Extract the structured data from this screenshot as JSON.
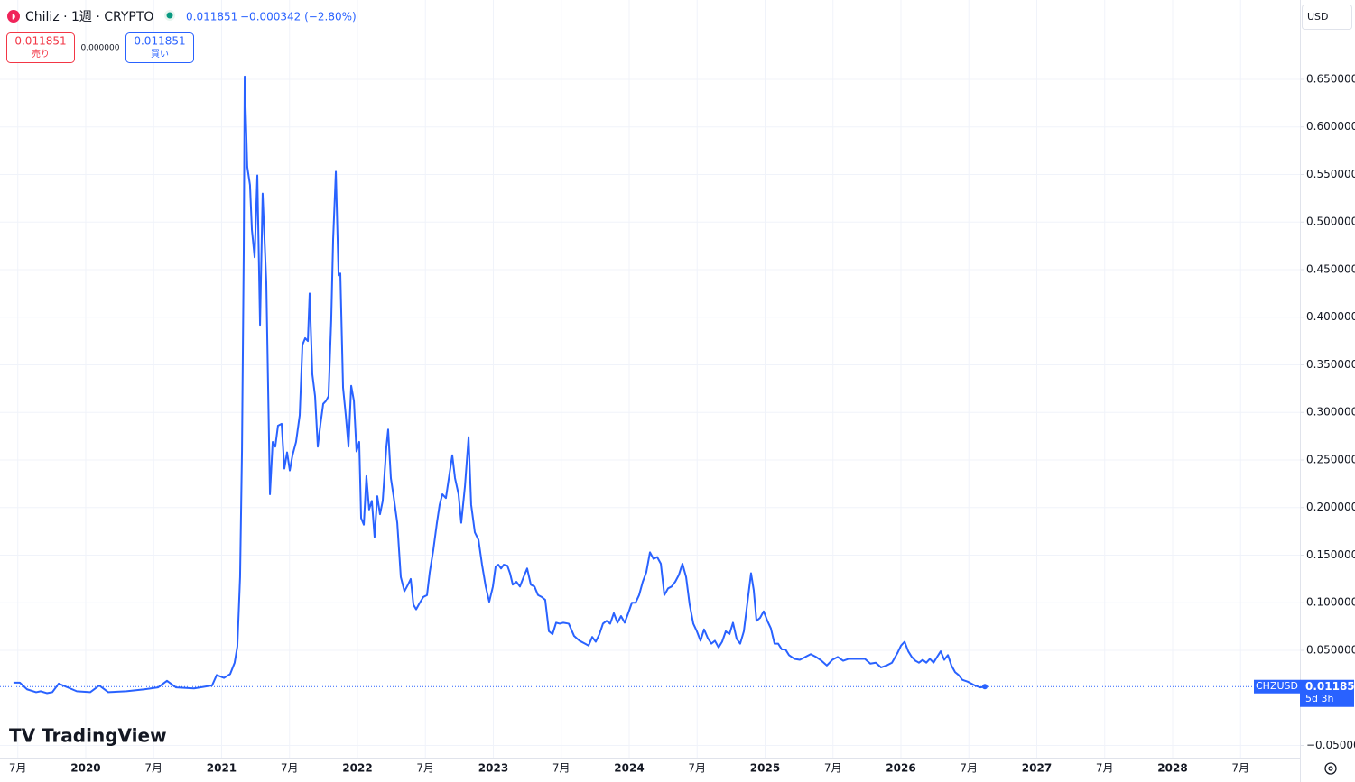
{
  "chart_data": {
    "type": "line",
    "symbol_title": "Chiliz · 1週 · CRYPTO",
    "last_price": 0.011851,
    "change": "−0.000342 (−2.80%)",
    "sell_label": "売り",
    "buy_label": "買い",
    "spread": "0.000000",
    "currency": "USD",
    "countdown": "5d 3h",
    "brand": "TradingView",
    "grid": true,
    "log_scale": false,
    "xlim": [
      2019.369,
      2028.937
    ],
    "ylim": [
      -0.0628,
      0.7334
    ],
    "xticks": [
      {
        "value": 2019.5,
        "label": "7月"
      },
      2020,
      {
        "value": 2020.5,
        "label": "7月"
      },
      2021,
      {
        "value": 2021.5,
        "label": "7月"
      },
      2022,
      {
        "value": 2022.5,
        "label": "7月"
      },
      2023,
      {
        "value": 2023.5,
        "label": "7月"
      },
      2024,
      {
        "value": 2024.5,
        "label": "7月"
      },
      2025,
      {
        "value": 2025.5,
        "label": "7月"
      },
      2026,
      {
        "value": 2026.5,
        "label": "7月"
      },
      2027,
      {
        "value": 2027.5,
        "label": "7月"
      },
      2028,
      {
        "value": 2028.5,
        "label": "7月"
      }
    ],
    "yticks": [
      {
        "value": -0.05,
        "label": "−0.050000"
      },
      {
        "value": 0.05,
        "label": "0.050000"
      },
      {
        "value": 0.1,
        "label": "0.100000"
      },
      {
        "value": 0.15,
        "label": "0.150000"
      },
      {
        "value": 0.2,
        "label": "0.200000"
      },
      {
        "value": 0.25,
        "label": "0.250000"
      },
      {
        "value": 0.3,
        "label": "0.300000"
      },
      {
        "value": 0.35,
        "label": "0.350000"
      },
      {
        "value": 0.4,
        "label": "0.400000"
      },
      {
        "value": 0.45,
        "label": "0.450000"
      },
      {
        "value": 0.5,
        "label": "0.500000"
      },
      {
        "value": 0.55,
        "label": "0.550000"
      },
      {
        "value": 0.6,
        "label": "0.600000"
      },
      {
        "value": 0.65,
        "label": "0.650000"
      }
    ],
    "series": [
      {
        "name": "CHZUSD",
        "color": "#2962ff",
        "x": [
          2019.468,
          2019.515,
          2019.568,
          2019.635,
          2019.668,
          2019.714,
          2019.754,
          2019.801,
          2019.867,
          2019.934,
          2020.033,
          2020.1,
          2020.166,
          2020.299,
          2020.432,
          2020.532,
          2020.598,
          2020.665,
          2020.797,
          2020.93,
          2020.964,
          2021.017,
          2021.063,
          2021.096,
          2021.116,
          2021.136,
          2021.15,
          2021.163,
          2021.17,
          2021.189,
          2021.209,
          2021.223,
          2021.243,
          2021.263,
          2021.283,
          2021.302,
          2021.329,
          2021.356,
          2021.376,
          2021.395,
          2021.415,
          2021.442,
          2021.462,
          2021.482,
          2021.502,
          2021.522,
          2021.548,
          2021.575,
          2021.595,
          2021.615,
          2021.635,
          2021.648,
          2021.668,
          2021.688,
          2021.708,
          2021.728,
          2021.748,
          2021.768,
          2021.787,
          2021.807,
          2021.821,
          2021.841,
          2021.861,
          2021.874,
          2021.894,
          2021.914,
          2021.934,
          2021.954,
          2021.974,
          2021.993,
          2022.013,
          2022.027,
          2022.047,
          2022.066,
          2022.086,
          2022.106,
          2022.126,
          2022.146,
          2022.166,
          2022.186,
          2022.213,
          2022.226,
          2022.246,
          2022.266,
          2022.293,
          2022.319,
          2022.346,
          2022.372,
          2022.392,
          2022.412,
          2022.432,
          2022.459,
          2022.485,
          2022.512,
          2022.532,
          2022.558,
          2022.585,
          2022.605,
          2022.625,
          2022.651,
          2022.678,
          2022.698,
          2022.718,
          2022.744,
          2022.764,
          2022.791,
          2022.818,
          2022.837,
          2022.864,
          2022.891,
          2022.917,
          2022.944,
          2022.97,
          2022.997,
          2023.017,
          2023.037,
          2023.057,
          2023.077,
          2023.103,
          2023.123,
          2023.143,
          2023.17,
          2023.196,
          2023.223,
          2023.249,
          2023.276,
          2023.303,
          2023.329,
          2023.356,
          2023.382,
          2023.409,
          2023.436,
          2023.462,
          2023.489,
          2023.515,
          2023.555,
          2023.595,
          2023.635,
          2023.675,
          2023.701,
          2023.728,
          2023.754,
          2023.781,
          2023.807,
          2023.834,
          2023.86,
          2023.887,
          2023.914,
          2023.94,
          2023.967,
          2023.993,
          2024.02,
          2024.047,
          2024.073,
          2024.1,
          2024.126,
          2024.153,
          2024.179,
          2024.206,
          2024.233,
          2024.259,
          2024.286,
          2024.312,
          2024.339,
          2024.365,
          2024.392,
          2024.419,
          2024.445,
          2024.472,
          2024.498,
          2024.525,
          2024.551,
          2024.578,
          2024.605,
          2024.631,
          2024.658,
          2024.684,
          2024.711,
          2024.738,
          2024.764,
          2024.791,
          2024.817,
          2024.844,
          2024.87,
          2024.897,
          2024.917,
          2024.937,
          2024.963,
          2024.99,
          2025.017,
          2025.043,
          2025.07,
          2025.097,
          2025.123,
          2025.15,
          2025.176,
          2025.216,
          2025.256,
          2025.296,
          2025.336,
          2025.376,
          2025.416,
          2025.455,
          2025.495,
          2025.535,
          2025.575,
          2025.615,
          2025.655,
          2025.695,
          2025.735,
          2025.775,
          2025.815,
          2025.854,
          2025.894,
          2025.934,
          2025.974,
          2026.001,
          2026.027,
          2026.054,
          2026.08,
          2026.107,
          2026.133,
          2026.16,
          2026.187,
          2026.213,
          2026.24,
          2026.266,
          2026.293,
          2026.319,
          2026.346,
          2026.372,
          2026.399,
          2026.425,
          2026.452,
          2026.492,
          2026.545,
          2026.585,
          2026.618
        ],
        "values": [
          0.016,
          0.016,
          0.009,
          0.006,
          0.007,
          0.005,
          0.006,
          0.015,
          0.011,
          0.007,
          0.006,
          0.013,
          0.006,
          0.007,
          0.009,
          0.011,
          0.018,
          0.011,
          0.01,
          0.013,
          0.024,
          0.021,
          0.025,
          0.037,
          0.054,
          0.127,
          0.259,
          0.468,
          0.653,
          0.558,
          0.539,
          0.492,
          0.463,
          0.549,
          0.392,
          0.53,
          0.437,
          0.214,
          0.269,
          0.264,
          0.286,
          0.288,
          0.241,
          0.258,
          0.239,
          0.255,
          0.269,
          0.297,
          0.371,
          0.378,
          0.375,
          0.425,
          0.34,
          0.317,
          0.264,
          0.288,
          0.309,
          0.312,
          0.317,
          0.397,
          0.482,
          0.553,
          0.444,
          0.446,
          0.326,
          0.297,
          0.264,
          0.328,
          0.312,
          0.259,
          0.269,
          0.189,
          0.182,
          0.233,
          0.198,
          0.207,
          0.169,
          0.212,
          0.193,
          0.207,
          0.264,
          0.282,
          0.231,
          0.212,
          0.184,
          0.127,
          0.112,
          0.119,
          0.125,
          0.098,
          0.093,
          0.1,
          0.106,
          0.108,
          0.132,
          0.155,
          0.184,
          0.203,
          0.214,
          0.21,
          0.236,
          0.255,
          0.231,
          0.214,
          0.184,
          0.222,
          0.274,
          0.203,
          0.174,
          0.166,
          0.14,
          0.117,
          0.101,
          0.117,
          0.138,
          0.14,
          0.136,
          0.14,
          0.139,
          0.131,
          0.119,
          0.122,
          0.117,
          0.127,
          0.136,
          0.119,
          0.117,
          0.108,
          0.106,
          0.103,
          0.07,
          0.067,
          0.079,
          0.078,
          0.079,
          0.078,
          0.065,
          0.06,
          0.057,
          0.055,
          0.064,
          0.059,
          0.067,
          0.078,
          0.081,
          0.078,
          0.089,
          0.079,
          0.086,
          0.079,
          0.089,
          0.1,
          0.1,
          0.108,
          0.122,
          0.132,
          0.153,
          0.146,
          0.148,
          0.141,
          0.108,
          0.115,
          0.117,
          0.122,
          0.129,
          0.141,
          0.127,
          0.098,
          0.078,
          0.07,
          0.06,
          0.072,
          0.063,
          0.057,
          0.06,
          0.053,
          0.059,
          0.07,
          0.067,
          0.079,
          0.062,
          0.057,
          0.07,
          0.1,
          0.131,
          0.113,
          0.081,
          0.084,
          0.091,
          0.081,
          0.073,
          0.057,
          0.057,
          0.051,
          0.051,
          0.045,
          0.041,
          0.04,
          0.043,
          0.046,
          0.043,
          0.039,
          0.034,
          0.04,
          0.043,
          0.039,
          0.041,
          0.041,
          0.041,
          0.041,
          0.036,
          0.037,
          0.032,
          0.034,
          0.037,
          0.047,
          0.055,
          0.059,
          0.049,
          0.043,
          0.039,
          0.037,
          0.04,
          0.037,
          0.041,
          0.037,
          0.043,
          0.049,
          0.04,
          0.045,
          0.034,
          0.027,
          0.024,
          0.019,
          0.017,
          0.013,
          0.011,
          0.011851
        ]
      }
    ]
  }
}
